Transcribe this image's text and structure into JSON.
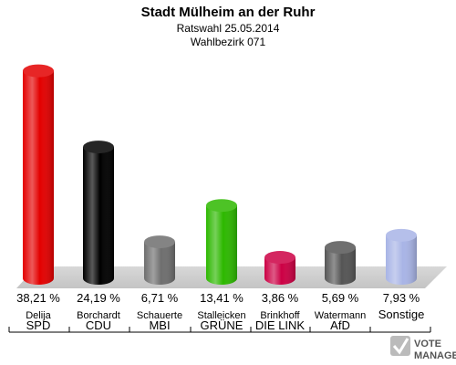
{
  "header": {
    "title": "Stadt Mülheim an der Ruhr",
    "subtitle": "Ratswahl 25.05.2014",
    "district": "Wahlbezirk 071"
  },
  "chart_data": {
    "type": "bar",
    "categories": [
      "SPD",
      "CDU",
      "MBI",
      "GRÜNE",
      "DIE LINKE",
      "AfD",
      "Sonstige"
    ],
    "candidates": [
      "Delija",
      "Borchardt",
      "Schauerte",
      "Stalleicken",
      "Brinkhoff",
      "Watermann",
      ""
    ],
    "values": [
      38.21,
      24.19,
      6.71,
      13.41,
      3.86,
      5.69,
      7.93
    ],
    "value_labels": [
      "38,21 %",
      "24,19 %",
      "6,71 %",
      "13,41 %",
      "3,86 %",
      "5,69 %",
      "7,93 %"
    ],
    "party_labels": [
      "SPD",
      "CDU",
      "MBI",
      "GRÜNE",
      "DIE LINK",
      "AfD",
      "Sonstige"
    ],
    "colors": [
      "#e30000",
      "#000000",
      "#6e6e6e",
      "#2db800",
      "#cc0044",
      "#555555",
      "#a8b4e6"
    ],
    "ylim": [
      0,
      40
    ],
    "grid": false
  },
  "logo": {
    "line1": "VOTE",
    "line2": "MANAGER"
  }
}
